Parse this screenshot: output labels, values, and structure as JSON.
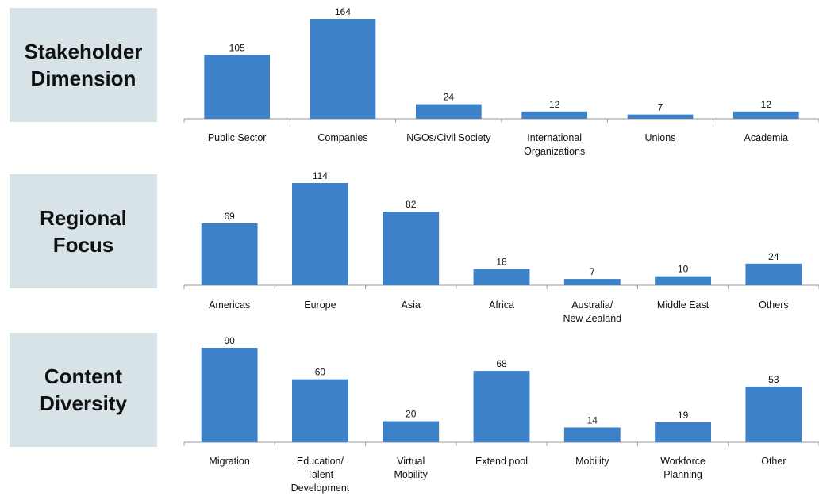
{
  "bar_color": "#3d82c8",
  "axis_color": "#999999",
  "label_bg": "#d7e3e7",
  "chart_data": [
    {
      "type": "bar",
      "panel_label": "Stakeholder\nDimension",
      "categories": [
        "Public Sector",
        "Companies",
        "NGOs/Civil Society",
        "International\nOrganizations",
        "Unions",
        "Academia"
      ],
      "values": [
        105,
        164,
        24,
        12,
        7,
        12
      ],
      "ylim": [
        0,
        164
      ]
    },
    {
      "type": "bar",
      "panel_label": "Regional\nFocus",
      "categories": [
        "Americas",
        "Europe",
        "Asia",
        "Africa",
        "Australia/\nNew Zealand",
        "Middle East",
        "Others"
      ],
      "values": [
        69,
        114,
        82,
        18,
        7,
        10,
        24
      ],
      "ylim": [
        0,
        114
      ]
    },
    {
      "type": "bar",
      "panel_label": "Content\nDiversity",
      "categories": [
        "Migration",
        "Education/\nTalent\nDevelopment",
        "Virtual\nMobility",
        "Extend pool",
        "Mobility",
        "Workforce\nPlanning",
        "Other"
      ],
      "values": [
        90,
        60,
        20,
        68,
        14,
        19,
        53
      ],
      "ylim": [
        0,
        90
      ]
    }
  ]
}
